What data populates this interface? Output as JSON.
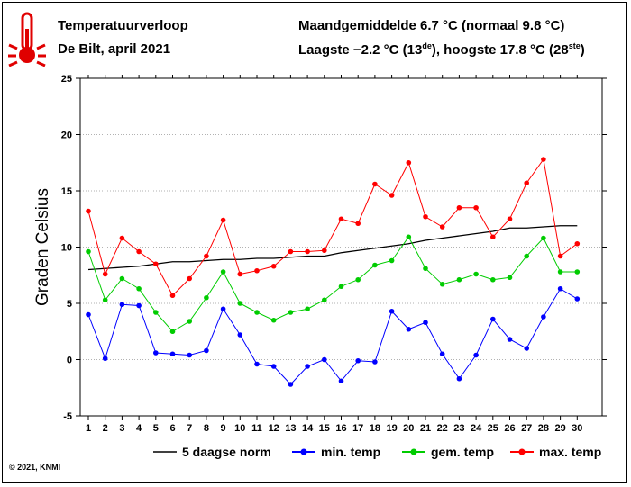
{
  "header": {
    "title": "Temperatuurverloop",
    "subtitle": "De Bilt, april 2021",
    "monthly_mean_text": "Maandgemiddelde 6.7 °C (normaal 9.8 °C)",
    "extremes_prefix": "Laagste −2.2 °C (13",
    "extremes_sup1": "de",
    "extremes_mid": "), hoogste 17.8 °C (28",
    "extremes_sup2": "ste",
    "extremes_suffix": ")"
  },
  "copyright": "© 2021, KNMI",
  "icons": {
    "logo": "thermometer-icon"
  },
  "colors": {
    "norm": "#000000",
    "min": "#0000ff",
    "mean": "#00cc00",
    "max": "#ff0000",
    "grid": "#999999"
  },
  "chart_data": {
    "type": "line",
    "ylabel": "Graden Celsius",
    "xlabel": "",
    "ylim": [
      -5,
      25
    ],
    "yticks": [
      -5,
      0,
      5,
      10,
      15,
      20,
      25
    ],
    "x": [
      1,
      2,
      3,
      4,
      5,
      6,
      7,
      8,
      9,
      10,
      11,
      12,
      13,
      14,
      15,
      16,
      17,
      18,
      19,
      20,
      21,
      22,
      23,
      24,
      25,
      26,
      27,
      28,
      29,
      30
    ],
    "grid": true,
    "legend_position": "bottom",
    "series": [
      {
        "name": "5 daagse norm",
        "color": "#000000",
        "markers": false,
        "values": [
          8.0,
          8.1,
          8.2,
          8.3,
          8.5,
          8.7,
          8.7,
          8.8,
          8.9,
          8.9,
          9.0,
          9.0,
          9.1,
          9.2,
          9.2,
          9.5,
          9.7,
          9.9,
          10.1,
          10.3,
          10.6,
          10.8,
          11.0,
          11.2,
          11.4,
          11.7,
          11.7,
          11.8,
          11.9,
          11.9
        ]
      },
      {
        "name": "min. temp",
        "color": "#0000ff",
        "markers": true,
        "values": [
          4.0,
          0.1,
          4.9,
          4.8,
          0.6,
          0.5,
          0.4,
          0.8,
          4.5,
          2.2,
          -0.4,
          -0.6,
          -2.2,
          -0.6,
          0.0,
          -1.9,
          -0.1,
          -0.2,
          4.3,
          2.7,
          3.3,
          0.5,
          -1.7,
          0.4,
          3.6,
          1.8,
          1.0,
          3.8,
          6.3,
          5.4
        ]
      },
      {
        "name": "gem. temp",
        "color": "#00cc00",
        "markers": true,
        "values": [
          9.6,
          5.3,
          7.2,
          6.3,
          4.2,
          2.5,
          3.4,
          5.5,
          7.8,
          5.0,
          4.2,
          3.5,
          4.2,
          4.5,
          5.3,
          6.5,
          7.1,
          8.4,
          8.8,
          10.9,
          8.1,
          6.7,
          7.1,
          7.6,
          7.1,
          7.3,
          9.2,
          10.8,
          7.8,
          7.8
        ]
      },
      {
        "name": "max. temp",
        "color": "#ff0000",
        "markers": true,
        "values": [
          13.2,
          7.6,
          10.8,
          9.6,
          8.5,
          5.7,
          7.2,
          9.2,
          12.4,
          7.6,
          7.9,
          8.3,
          9.6,
          9.6,
          9.7,
          12.5,
          12.1,
          15.6,
          14.6,
          17.5,
          12.7,
          11.8,
          13.5,
          13.5,
          10.9,
          12.5,
          15.7,
          17.8,
          9.2,
          10.3
        ]
      }
    ]
  }
}
